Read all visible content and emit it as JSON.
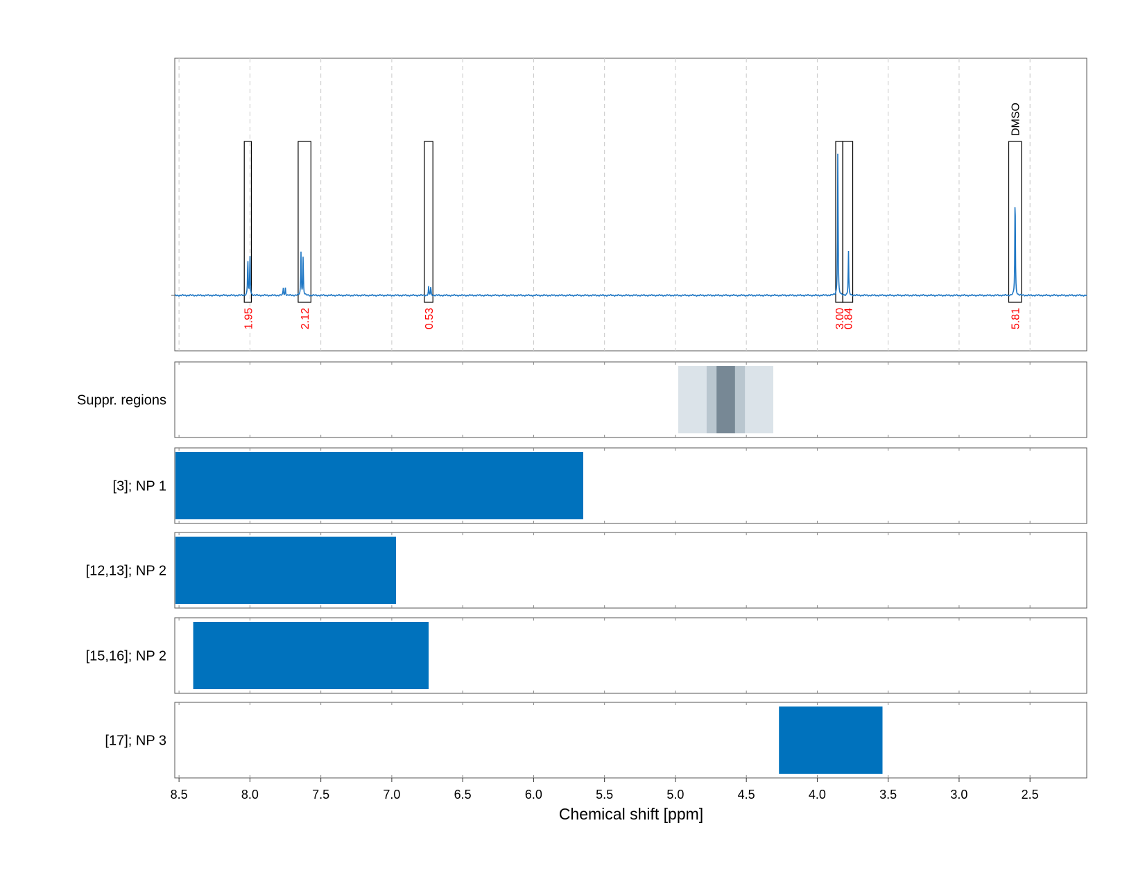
{
  "chart_data": {
    "type": "line",
    "xlabel": "Chemical shift [ppm]",
    "xlim": [
      8.53,
      2.1
    ],
    "x_ticks": [
      "8.5",
      "8.0",
      "7.5",
      "7.0",
      "6.5",
      "6.0",
      "5.5",
      "5.0",
      "4.5",
      "4.0",
      "3.5",
      "3.0",
      "2.5"
    ],
    "spectrum": {
      "color": "#1f77c4",
      "baseline": 0,
      "peaks": [
        {
          "ppm": 8.015,
          "height": 0.36
        },
        {
          "ppm": 8.0,
          "height": 0.38
        },
        {
          "ppm": 7.765,
          "height": 0.07
        },
        {
          "ppm": 7.75,
          "height": 0.07
        },
        {
          "ppm": 7.64,
          "height": 0.4
        },
        {
          "ppm": 7.625,
          "height": 0.36
        },
        {
          "ppm": 6.74,
          "height": 0.08
        },
        {
          "ppm": 6.725,
          "height": 0.08
        },
        {
          "ppm": 3.855,
          "height": 1.37
        },
        {
          "ppm": 3.78,
          "height": 0.42
        },
        {
          "ppm": 2.605,
          "height": 1.02
        }
      ]
    },
    "integration_regions": [
      {
        "start": 8.04,
        "end": 7.99,
        "label": "1.95"
      },
      {
        "start": 7.66,
        "end": 7.57,
        "label": "2.12"
      },
      {
        "start": 6.77,
        "end": 6.71,
        "label": "0.53"
      },
      {
        "start": 3.87,
        "end": 3.82,
        "label": "3.00"
      },
      {
        "start": 3.82,
        "end": 3.75,
        "label": "0.84"
      },
      {
        "start": 2.65,
        "end": 2.56,
        "label": "5.81",
        "annotation": "DMSO"
      }
    ],
    "tracks": [
      {
        "name": "Suppr. regions",
        "type": "shaded",
        "regions": [
          {
            "start": 4.98,
            "end": 4.31,
            "color": "#dbe3e9"
          },
          {
            "start": 4.78,
            "end": 4.51,
            "color": "#b9c6cf"
          },
          {
            "start": 4.71,
            "end": 4.58,
            "color": "#778895"
          }
        ]
      },
      {
        "name": "[3]; NP 1",
        "type": "bar",
        "color": "#0072bd",
        "start": 8.53,
        "end": 5.65
      },
      {
        "name": "[12,13]; NP 2",
        "type": "bar",
        "color": "#0072bd",
        "start": 8.53,
        "end": 6.97
      },
      {
        "name": "[15,16]; NP 2",
        "type": "bar",
        "color": "#0072bd",
        "start": 8.4,
        "end": 6.74
      },
      {
        "name": "[17]; NP 3",
        "type": "bar",
        "color": "#0072bd",
        "start": 4.27,
        "end": 3.54
      }
    ],
    "grid": true
  }
}
